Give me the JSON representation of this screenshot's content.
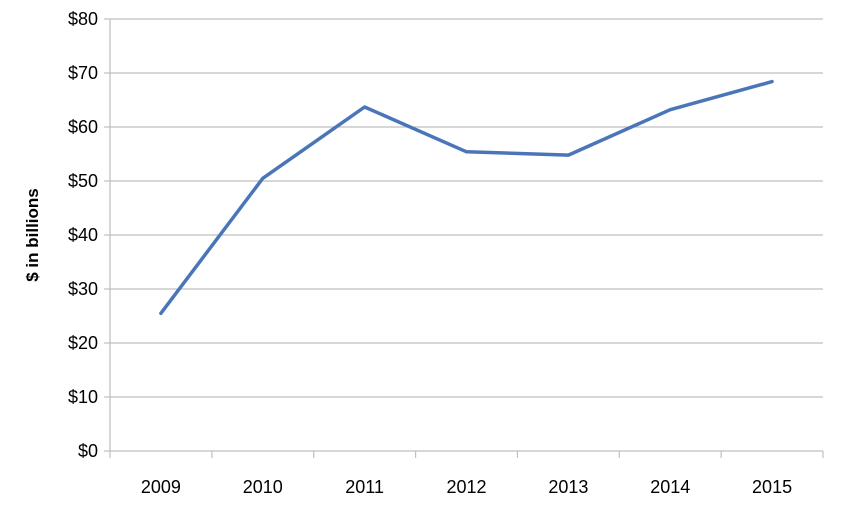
{
  "chart_data": {
    "type": "line",
    "title": "",
    "xlabel": "",
    "ylabel": "$ in billions",
    "categories": [
      "2009",
      "2010",
      "2011",
      "2012",
      "2013",
      "2014",
      "2015"
    ],
    "series": [
      {
        "values": [
          25.5,
          50.5,
          63.7,
          55.4,
          54.8,
          63.2,
          68.4
        ],
        "color": "#4a76b8"
      }
    ],
    "ylim": [
      0,
      80
    ],
    "yticks": [
      0,
      10,
      20,
      30,
      40,
      50,
      60,
      70,
      80
    ],
    "ytick_labels": [
      "$0",
      "$10",
      "$20",
      "$30",
      "$40",
      "$50",
      "$60",
      "$70",
      "$80"
    ],
    "grid": true,
    "legend": "none",
    "colors": {
      "line": "#4a76b8",
      "grid": "#bfbfbf",
      "axis": "#bfbfbf"
    }
  }
}
